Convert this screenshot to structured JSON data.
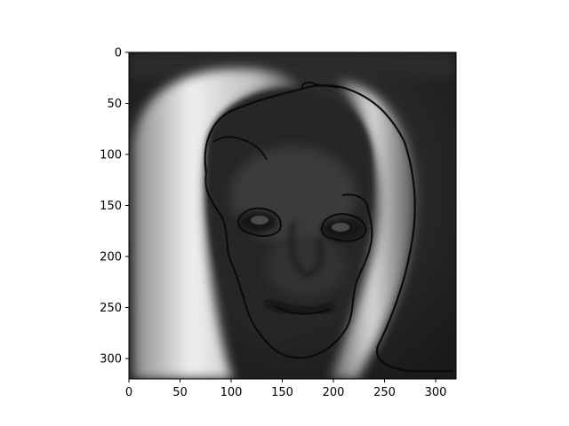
{
  "chart_data": {
    "type": "heatmap",
    "title": "",
    "xlabel": "",
    "ylabel": "",
    "colormap": "gray",
    "xlim": [
      0,
      320
    ],
    "ylim": [
      320,
      0
    ],
    "x_ticks": [
      0,
      50,
      100,
      150,
      200,
      250,
      300
    ],
    "y_ticks": [
      0,
      50,
      100,
      150,
      200,
      250,
      300
    ],
    "x_tick_labels": [
      "0",
      "50",
      "100",
      "150",
      "200",
      "250",
      "300"
    ],
    "y_tick_labels": [
      "0",
      "50",
      "100",
      "150",
      "200",
      "250",
      "300"
    ],
    "grid": false,
    "legend": "none",
    "axis_color": "#000000",
    "background_color": "#ffffff"
  }
}
